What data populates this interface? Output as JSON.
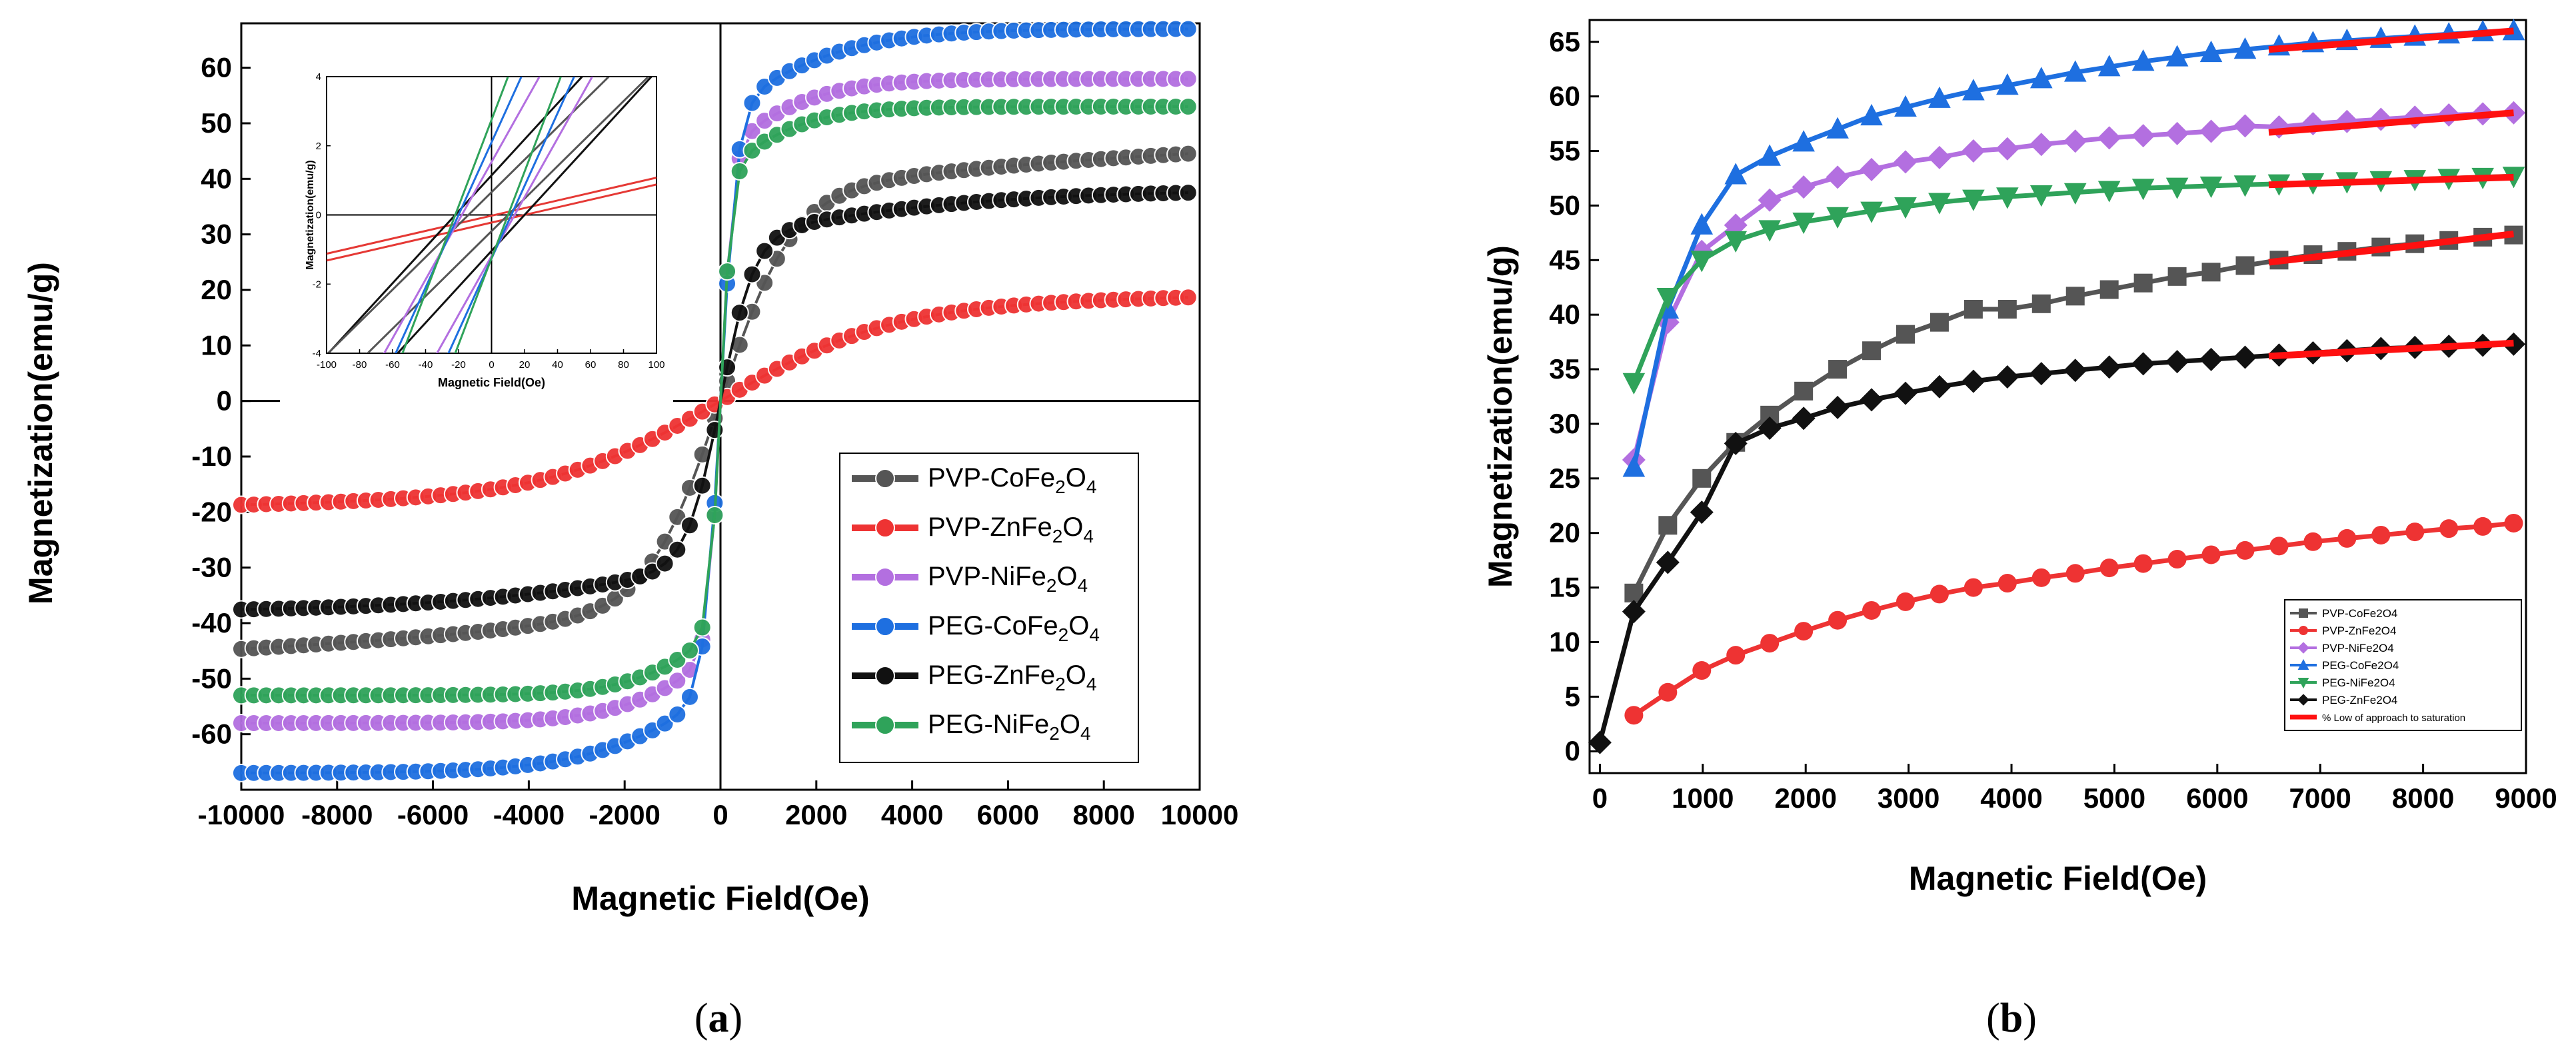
{
  "panel_labels": {
    "a_letter": "a",
    "b_letter": "b"
  },
  "chart_data": [
    {
      "id": "a",
      "type": "scatter",
      "xlabel": "Magnetic Field(Oe)",
      "ylabel": "Magnetization(emu/g)",
      "xlim": [
        -10000,
        10000
      ],
      "ylim": [
        -70,
        68
      ],
      "xticks": [
        -10000,
        -8000,
        -6000,
        -4000,
        -2000,
        0,
        2000,
        4000,
        6000,
        8000,
        10000
      ],
      "yticks": [
        -60,
        -50,
        -40,
        -30,
        -20,
        -10,
        0,
        10,
        20,
        30,
        40,
        50,
        60
      ],
      "legend_position": "lower-right",
      "series": [
        {
          "name": "PVP-CoFe",
          "sub1": "2",
          "mid": "O",
          "sub2": "4",
          "color": "#555555",
          "Ms": 48,
          "a": 1500,
          "k": 0.0001
        },
        {
          "name": "PVP-ZnFe",
          "sub1": "2",
          "mid": "O",
          "sub2": "4",
          "color": "#ee3333",
          "Ms": 22,
          "a": 3500,
          "k": 2e-05
        },
        {
          "name": "PVP-NiFe",
          "sub1": "2",
          "mid": "O",
          "sub2": "4",
          "color": "#b36fe0",
          "Ms": 58,
          "a": 260,
          "k": 5e-05
        },
        {
          "name": "PEG-CoFe",
          "sub1": "2",
          "mid": "O",
          "sub2": "4",
          "color": "#1e6fe0",
          "Ms": 67,
          "a": 340,
          "k": 7e-05
        },
        {
          "name": "PEG-ZnFe",
          "sub1": "2",
          "mid": "O",
          "sub2": "4",
          "color": "#111111",
          "Ms": 38,
          "a": 700,
          "k": 4e-05
        },
        {
          "name": "PEG-NiFe",
          "sub1": "2",
          "mid": "O",
          "sub2": "4",
          "color": "#2fa35a",
          "Ms": 53,
          "a": 230,
          "k": 4e-05
        }
      ],
      "inset": {
        "xlabel": "Magnetic Field(Oe)",
        "ylabel": "Magnetization(emu/g)",
        "xlim": [
          -100,
          100
        ],
        "ylim": [
          -4,
          4
        ],
        "xticks": [
          -100,
          -80,
          -60,
          -40,
          -20,
          0,
          20,
          40,
          60,
          80,
          100
        ],
        "yticks": [
          -4,
          -2,
          0,
          2,
          4
        ],
        "loops": [
          {
            "color": "#e53935",
            "slope": 0.011,
            "offsets": [
              2,
              20
            ]
          },
          {
            "color": "#111111",
            "slope": 0.052,
            "offsets": [
              -22,
              20
            ]
          },
          {
            "color": "#555555",
            "slope": 0.047,
            "offsets": [
              -14,
              10
            ]
          },
          {
            "color": "#b36fe0",
            "slope": 0.085,
            "offsets": [
              -18,
              14
            ]
          },
          {
            "color": "#1e6fe0",
            "slope": 0.105,
            "offsets": [
              -20,
              12
            ]
          },
          {
            "color": "#2fa35a",
            "slope": 0.125,
            "offsets": [
              -22,
              10
            ]
          }
        ]
      }
    },
    {
      "id": "b",
      "type": "line",
      "xlabel": "Magnetic Field(Oe)",
      "ylabel": "Magnetization(emu/g)",
      "xlim": [
        -100,
        9000
      ],
      "ylim": [
        -2,
        67
      ],
      "xticks": [
        0,
        1000,
        2000,
        3000,
        4000,
        5000,
        6000,
        7000,
        8000,
        9000
      ],
      "yticks": [
        0,
        5,
        10,
        15,
        20,
        25,
        30,
        35,
        40,
        45,
        50,
        55,
        60,
        65
      ],
      "legend_position": "lower-right",
      "series": [
        {
          "name": "PVP-CoFe2O4",
          "marker": "square",
          "color": "#555555",
          "x": [
            330,
            660,
            990,
            1320,
            1650,
            1980,
            2310,
            2640,
            2970,
            3300,
            3630,
            3960,
            4290,
            4620,
            4950,
            5280,
            5610,
            5940,
            6270,
            6600,
            6930,
            7260,
            7590,
            7920,
            8250,
            8580,
            8880
          ],
          "y": [
            14.5,
            20.7,
            25,
            28.3,
            30.8,
            33,
            35,
            36.7,
            38.2,
            39.3,
            40.5,
            40.5,
            41,
            41.7,
            42.3,
            42.9,
            43.5,
            43.9,
            44.5,
            45,
            45.5,
            45.8,
            46.2,
            46.5,
            46.8,
            47.1,
            47.3
          ]
        },
        {
          "name": "PVP-ZnFe2O4",
          "marker": "circle",
          "color": "#ee3333",
          "x": [
            330,
            660,
            990,
            1320,
            1650,
            1980,
            2310,
            2640,
            2970,
            3300,
            3630,
            3960,
            4290,
            4620,
            4950,
            5280,
            5610,
            5940,
            6270,
            6600,
            6930,
            7260,
            7590,
            7920,
            8250,
            8580,
            8880
          ],
          "y": [
            3.3,
            5.4,
            7.4,
            8.8,
            9.9,
            11,
            12,
            12.9,
            13.7,
            14.4,
            15,
            15.4,
            15.9,
            16.3,
            16.8,
            17.2,
            17.6,
            18,
            18.4,
            18.8,
            19.2,
            19.5,
            19.8,
            20.1,
            20.4,
            20.6,
            20.9
          ]
        },
        {
          "name": "PVP-NiFe2O4",
          "marker": "diamond",
          "color": "#b36fe0",
          "x": [
            330,
            660,
            990,
            1320,
            1650,
            1980,
            2310,
            2640,
            2970,
            3300,
            3630,
            3960,
            4290,
            4620,
            4950,
            5280,
            5610,
            5940,
            6270,
            6600,
            6930,
            7260,
            7590,
            7920,
            8250,
            8580,
            8880
          ],
          "y": [
            26.7,
            39.3,
            45.8,
            48.2,
            50.5,
            51.7,
            52.6,
            53.3,
            54,
            54.4,
            55,
            55.2,
            55.6,
            55.9,
            56.2,
            56.4,
            56.6,
            56.8,
            57.3,
            57.2,
            57.5,
            57.7,
            57.9,
            58.1,
            58.3,
            58.4,
            58.5
          ]
        },
        {
          "name": "PEG-CoFe2O4",
          "marker": "triangle-up",
          "color": "#1e6fe0",
          "x": [
            330,
            660,
            990,
            1320,
            1650,
            1980,
            2310,
            2640,
            2970,
            3300,
            3630,
            3960,
            4290,
            4620,
            4950,
            5280,
            5610,
            5940,
            6270,
            6600,
            6930,
            7260,
            7590,
            7920,
            8250,
            8580,
            8880
          ],
          "y": [
            26,
            40.5,
            48.2,
            52.8,
            54.5,
            55.8,
            57,
            58.2,
            59,
            59.8,
            60.5,
            61,
            61.6,
            62.2,
            62.7,
            63.2,
            63.6,
            64,
            64.3,
            64.6,
            64.9,
            65.1,
            65.3,
            65.5,
            65.7,
            65.9,
            66
          ]
        },
        {
          "name": "PEG-NiFe2O4",
          "marker": "triangle-down",
          "color": "#2fa35a",
          "x": [
            330,
            660,
            990,
            1320,
            1650,
            1980,
            2310,
            2640,
            2970,
            3300,
            3630,
            3960,
            4290,
            4620,
            4950,
            5280,
            5610,
            5940,
            6270,
            6600,
            6930,
            7260,
            7590,
            7920,
            8250,
            8580,
            8880
          ],
          "y": [
            33.8,
            41.6,
            45,
            46.8,
            47.8,
            48.5,
            49,
            49.5,
            49.9,
            50.3,
            50.6,
            50.8,
            51,
            51.2,
            51.4,
            51.6,
            51.7,
            51.8,
            51.9,
            52,
            52.1,
            52.2,
            52.3,
            52.4,
            52.5,
            52.6,
            52.7
          ]
        },
        {
          "name": "PEG-ZnFe2O4",
          "marker": "diamond",
          "color": "#111111",
          "x": [
            0,
            330,
            660,
            990,
            1320,
            1650,
            1980,
            2310,
            2640,
            2970,
            3300,
            3630,
            3960,
            4290,
            4620,
            4950,
            5280,
            5610,
            5940,
            6270,
            6600,
            6930,
            7260,
            7590,
            7920,
            8250,
            8580,
            8880
          ],
          "y": [
            0.8,
            12.8,
            17.3,
            21.9,
            28.2,
            29.6,
            30.5,
            31.5,
            32.2,
            32.8,
            33.4,
            33.9,
            34.3,
            34.6,
            34.9,
            35.2,
            35.5,
            35.7,
            35.9,
            36.1,
            36.3,
            36.5,
            36.7,
            36.9,
            37,
            37.1,
            37.2,
            37.3
          ]
        }
      ],
      "approach_label": "%  Low of approach to saturation",
      "approach_color": "#ff1010",
      "approach_fits": [
        {
          "x": [
            6500,
            8880
          ],
          "y": [
            64.3,
            66.0
          ]
        },
        {
          "x": [
            6500,
            8880
          ],
          "y": [
            56.7,
            58.5
          ]
        },
        {
          "x": [
            6500,
            8880
          ],
          "y": [
            51.9,
            52.6
          ]
        },
        {
          "x": [
            6500,
            8880
          ],
          "y": [
            44.8,
            47.4
          ]
        },
        {
          "x": [
            6500,
            8880
          ],
          "y": [
            36.2,
            37.4
          ]
        }
      ]
    }
  ]
}
